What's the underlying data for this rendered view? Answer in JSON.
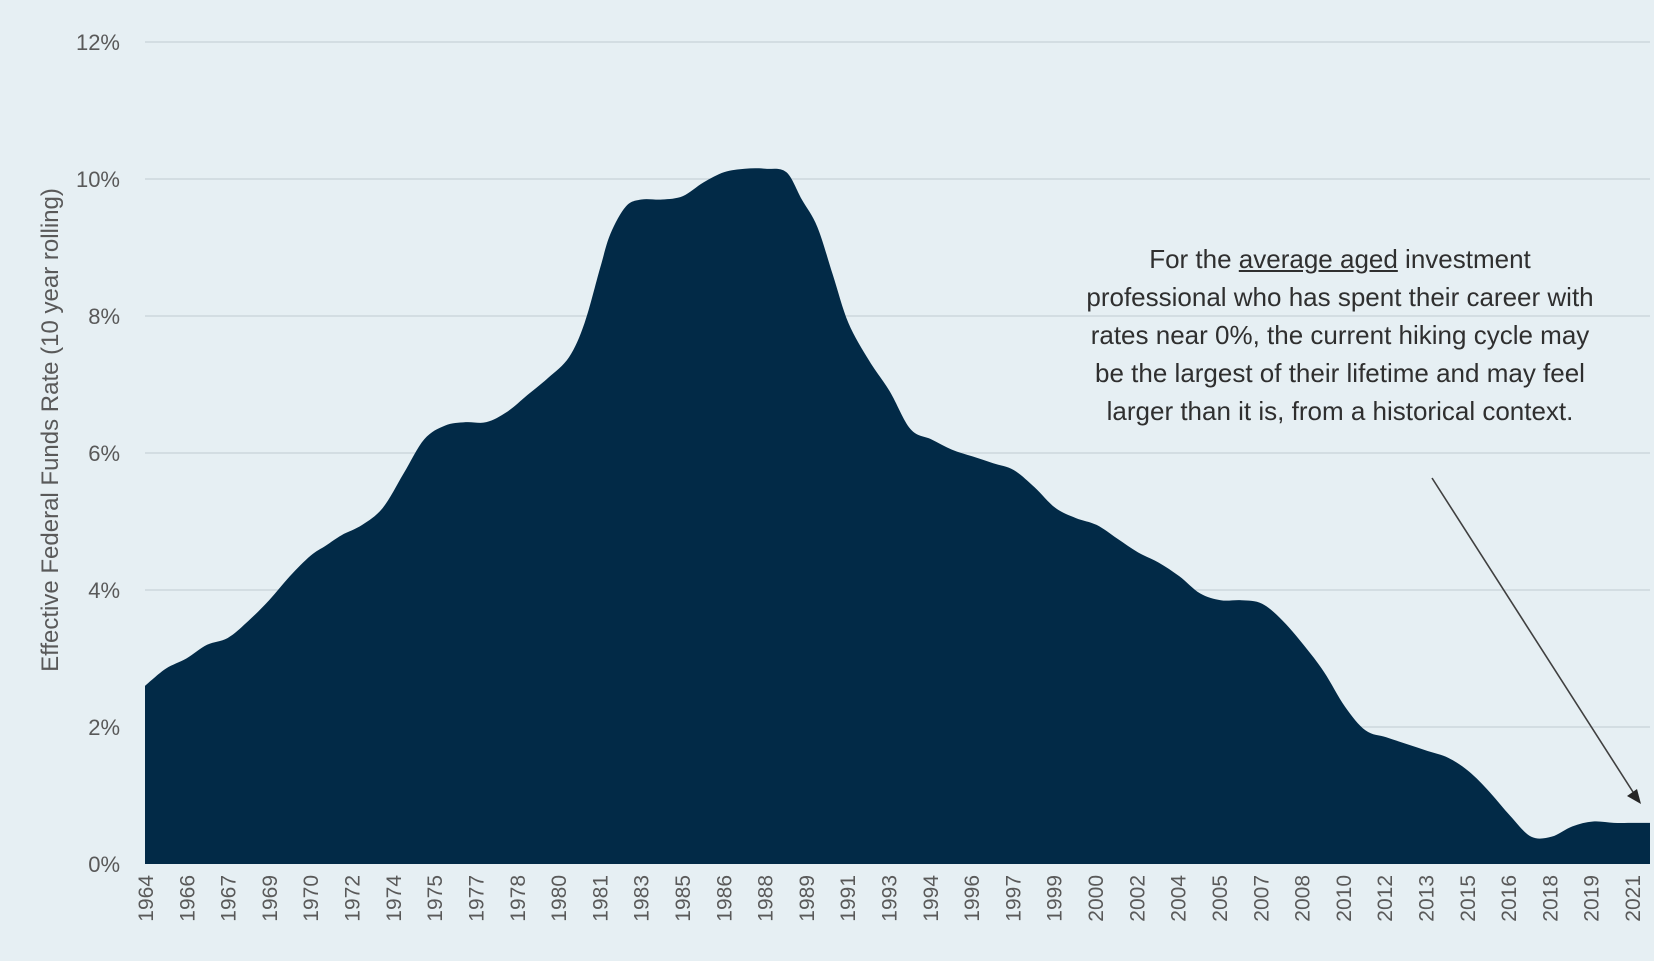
{
  "chart_data": {
    "type": "area",
    "ylabel": "Effective Federal Funds Rate (10 year rolling)",
    "xlabel": "",
    "ylim": [
      0,
      12
    ],
    "yticks": [
      0,
      2,
      4,
      6,
      8,
      10,
      12
    ],
    "ytick_labels": [
      "0%",
      "2%",
      "4%",
      "6%",
      "8%",
      "10%",
      "12%"
    ],
    "xtick_labels": [
      "1964",
      "1966",
      "1967",
      "1969",
      "1970",
      "1972",
      "1974",
      "1975",
      "1977",
      "1978",
      "1980",
      "1981",
      "1983",
      "1985",
      "1986",
      "1988",
      "1989",
      "1991",
      "1993",
      "1994",
      "1996",
      "1997",
      "1999",
      "2000",
      "2002",
      "2004",
      "2005",
      "2007",
      "2008",
      "2010",
      "2012",
      "2013",
      "2015",
      "2016",
      "2018",
      "2019",
      "2021"
    ],
    "grid": true,
    "fill_color": "#022a47",
    "background_color": "#e6eff3",
    "x": [
      1964.0,
      1964.8,
      1965.6,
      1966.4,
      1967.2,
      1968.0,
      1968.8,
      1969.6,
      1970.4,
      1971.0,
      1971.6,
      1972.4,
      1973.2,
      1974.0,
      1974.8,
      1975.6,
      1976.4,
      1977.2,
      1978.0,
      1978.8,
      1979.6,
      1980.4,
      1981.0,
      1981.6,
      1982.0,
      1982.6,
      1983.2,
      1984.0,
      1984.8,
      1985.6,
      1986.4,
      1987.2,
      1988.0,
      1988.8,
      1989.4,
      1990.0,
      1990.6,
      1991.2,
      1992.0,
      1992.8,
      1993.6,
      1994.4,
      1995.2,
      1996.0,
      1996.8,
      1997.6,
      1998.4,
      1999.2,
      2000.0,
      2000.8,
      2001.6,
      2002.4,
      2003.2,
      2004.0,
      2004.8,
      2005.6,
      2006.4,
      2007.2,
      2008.0,
      2008.8,
      2009.6,
      2010.4,
      2011.2,
      2012.0,
      2012.8,
      2013.6,
      2014.4,
      2015.2,
      2016.0,
      2016.8,
      2017.6,
      2018.4,
      2019.2,
      2020.0,
      2020.8,
      2021.6,
      2022.2
    ],
    "values": [
      2.6,
      2.85,
      3.0,
      3.2,
      3.3,
      3.55,
      3.85,
      4.2,
      4.5,
      4.65,
      4.8,
      4.95,
      5.2,
      5.7,
      6.2,
      6.4,
      6.45,
      6.45,
      6.6,
      6.85,
      7.1,
      7.4,
      7.9,
      8.7,
      9.2,
      9.6,
      9.7,
      9.7,
      9.75,
      9.95,
      10.1,
      10.15,
      10.15,
      10.1,
      9.7,
      9.3,
      8.6,
      7.9,
      7.35,
      6.9,
      6.35,
      6.2,
      6.05,
      5.95,
      5.85,
      5.75,
      5.5,
      5.2,
      5.05,
      4.95,
      4.75,
      4.55,
      4.4,
      4.2,
      3.95,
      3.85,
      3.85,
      3.8,
      3.55,
      3.2,
      2.8,
      2.3,
      1.95,
      1.85,
      1.75,
      1.65,
      1.55,
      1.35,
      1.05,
      0.7,
      0.4,
      0.4,
      0.55,
      0.62,
      0.6,
      0.6,
      0.6
    ]
  },
  "annotation": {
    "part1": "For the ",
    "underlined": "average aged",
    "part2": " investment professional who has spent their career with rates near 0%, the current hiking cycle may be the largest of their lifetime and may feel larger than it is, from a historical context."
  }
}
